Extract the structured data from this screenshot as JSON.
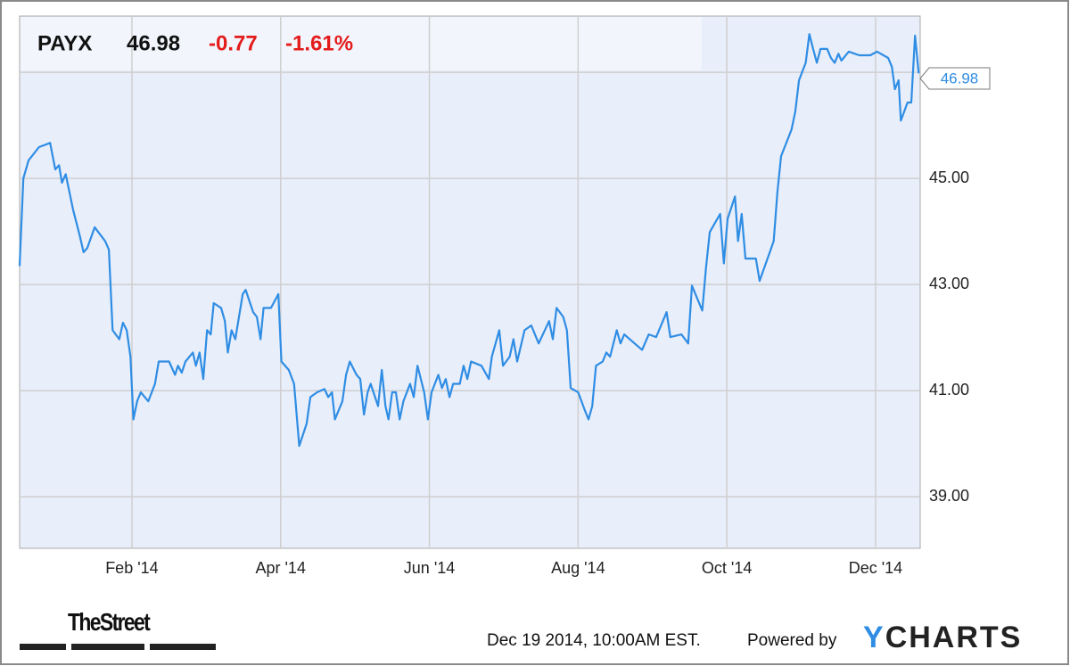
{
  "chart_data": {
    "type": "line",
    "header": {
      "ticker": "PAYX",
      "price": 46.98,
      "change": "-0.77",
      "change_pct": "-1.61%"
    },
    "x": [
      -0.51,
      -0.46,
      -0.39,
      -0.25,
      -0.1,
      -0.03,
      0.02,
      0.06,
      0.11,
      0.21,
      0.3,
      0.35,
      0.4,
      0.5,
      0.64,
      0.69,
      0.74,
      0.83,
      0.88,
      0.93,
      0.98,
      1.02,
      1.07,
      1.12,
      1.22,
      1.31,
      1.36,
      1.5,
      1.58,
      1.62,
      1.67,
      1.72,
      1.82,
      1.86,
      1.91,
      1.96,
      2.01,
      2.06,
      2.1,
      2.2,
      2.25,
      2.29,
      2.34,
      2.39,
      2.49,
      2.53,
      2.63,
      2.68,
      2.73,
      2.77,
      2.87,
      2.97,
      3.01,
      3.11,
      3.18,
      3.25,
      3.35,
      3.4,
      3.49,
      3.59,
      3.64,
      3.69,
      3.73,
      3.83,
      3.88,
      3.93,
      4.02,
      4.07,
      4.12,
      4.17,
      4.21,
      4.31,
      4.36,
      4.41,
      4.45,
      4.5,
      4.55,
      4.6,
      4.65,
      4.74,
      4.79,
      4.84,
      4.93,
      4.98,
      5.03,
      5.12,
      5.17,
      5.22,
      5.27,
      5.32,
      5.41,
      5.46,
      5.51,
      5.56,
      5.7,
      5.8,
      5.84,
      5.94,
      5.99,
      6.08,
      6.13,
      6.18,
      6.28,
      6.37,
      6.47,
      6.61,
      6.66,
      6.71,
      6.8,
      6.85,
      6.9,
      7.0,
      7.09,
      7.14,
      7.19,
      7.24,
      7.33,
      7.38,
      7.43,
      7.52,
      7.57,
      7.62,
      7.76,
      7.86,
      7.95,
      8.05,
      8.19,
      8.24,
      8.39,
      8.48,
      8.53,
      8.67,
      8.72,
      8.77,
      8.91,
      8.96,
      9.01,
      9.11,
      9.15,
      9.2,
      9.25,
      9.39,
      9.44,
      9.59,
      9.63,
      9.68,
      9.73,
      9.87,
      9.92,
      9.97,
      10.06,
      10.11,
      10.16,
      10.21,
      10.26,
      10.35,
      10.4,
      10.45,
      10.5,
      10.54,
      10.64,
      10.78,
      10.93,
      11.02,
      11.17,
      11.22,
      11.26,
      11.31,
      11.34,
      11.43,
      11.48,
      11.53,
      11.58
    ],
    "series": [
      {
        "color": "#2f8de4",
        "values": [
          43.35,
          45.0,
          45.34,
          45.59,
          45.67,
          45.17,
          45.25,
          44.92,
          45.08,
          44.41,
          43.91,
          43.61,
          43.69,
          44.08,
          43.82,
          43.66,
          42.14,
          41.97,
          42.28,
          42.14,
          41.64,
          40.46,
          40.8,
          40.97,
          40.8,
          41.13,
          41.55,
          41.55,
          41.3,
          41.47,
          41.34,
          41.55,
          41.72,
          41.47,
          41.72,
          41.22,
          42.14,
          42.06,
          42.65,
          42.56,
          42.31,
          41.72,
          42.14,
          41.97,
          42.82,
          42.9,
          42.48,
          42.39,
          41.97,
          42.56,
          42.56,
          42.82,
          41.55,
          41.39,
          41.13,
          39.96,
          40.38,
          40.88,
          40.97,
          41.03,
          40.88,
          40.97,
          40.46,
          40.8,
          41.3,
          41.55,
          41.3,
          41.22,
          40.55,
          40.97,
          41.13,
          40.71,
          41.39,
          40.71,
          40.46,
          40.97,
          40.97,
          40.46,
          40.8,
          41.13,
          40.88,
          41.47,
          40.97,
          40.46,
          40.97,
          41.3,
          41.05,
          41.22,
          40.88,
          41.13,
          41.13,
          41.47,
          41.22,
          41.55,
          41.47,
          41.22,
          41.64,
          42.14,
          41.47,
          41.64,
          41.97,
          41.55,
          42.14,
          42.23,
          41.89,
          42.31,
          41.97,
          42.56,
          42.39,
          42.14,
          41.05,
          40.97,
          40.63,
          40.46,
          40.71,
          41.47,
          41.55,
          41.72,
          41.64,
          42.14,
          41.89,
          42.06,
          41.89,
          41.77,
          42.06,
          42.01,
          42.48,
          42.01,
          42.06,
          41.89,
          42.98,
          42.51,
          43.32,
          43.99,
          44.33,
          43.4,
          44.24,
          44.66,
          43.82,
          44.33,
          43.49,
          43.49,
          43.07,
          43.66,
          43.82,
          44.75,
          45.42,
          45.92,
          46.26,
          46.85,
          47.18,
          47.72,
          47.44,
          47.18,
          47.44,
          47.44,
          47.27,
          47.18,
          47.35,
          47.22,
          47.39,
          47.32,
          47.32,
          47.39,
          47.27,
          47.1,
          46.68,
          46.85,
          46.09,
          46.43,
          46.43,
          47.69,
          46.98
        ]
      }
    ],
    "xlim": [
      -0.51,
      11.6
    ],
    "xticks": [
      {
        "value": 1,
        "label": "Feb '14"
      },
      {
        "value": 3,
        "label": "Apr '14"
      },
      {
        "value": 5,
        "label": "Jun '14"
      },
      {
        "value": 7,
        "label": "Aug '14"
      },
      {
        "value": 9,
        "label": "Oct '14"
      },
      {
        "value": 11,
        "label": "Dec '14"
      }
    ],
    "ylim": [
      38.03,
      48.06
    ],
    "yticks": [
      {
        "value": 39,
        "label": "39.00"
      },
      {
        "value": 41,
        "label": "41.00"
      },
      {
        "value": 43,
        "label": "43.00"
      },
      {
        "value": 45,
        "label": "45.00"
      },
      {
        "value": 47,
        "label": null
      }
    ],
    "grid": true,
    "source": "TheStreet",
    "timestamp": "Dec 19 2014, 10:00AM EST.",
    "powered_by": "Powered by",
    "brand": "YCHARTS"
  }
}
